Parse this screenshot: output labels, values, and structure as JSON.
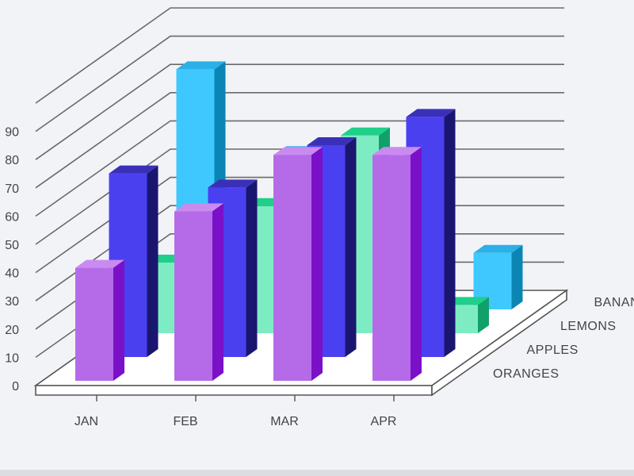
{
  "chart_data": {
    "type": "bar",
    "title": "",
    "xlabel": "",
    "ylabel": "",
    "ylim": [
      0,
      130
    ],
    "yticks": [
      0,
      10,
      20,
      30,
      40,
      50,
      60,
      70,
      80,
      90
    ],
    "categories": [
      "JAN",
      "FEB",
      "MAR",
      "APR"
    ],
    "grid": true,
    "series": [
      {
        "name": "ORANGES",
        "values": [
          40,
          60,
          80,
          80
        ],
        "colors": {
          "front": "#b56be8",
          "side": "#7a10c8",
          "top": "#c98bf0"
        }
      },
      {
        "name": "APPLES",
        "values": [
          65,
          60,
          75,
          85
        ],
        "colors": {
          "front": "#4a40f0",
          "side": "#1a1670",
          "top": "#3a30b8"
        }
      },
      {
        "name": "LEMONS",
        "values": [
          25,
          45,
          70,
          10
        ],
        "colors": {
          "front": "#7eecc3",
          "side": "#12a06a",
          "top": "#1fcf8a"
        }
      },
      {
        "name": "BANANAS",
        "values": [
          85,
          55,
          45,
          20
        ],
        "colors": {
          "front": "#3ec8fe",
          "side": "#0b86b4",
          "top": "#2bb0e8"
        }
      }
    ],
    "legend_position": "right-depth-axis"
  },
  "background_color": "#f2f3f7"
}
